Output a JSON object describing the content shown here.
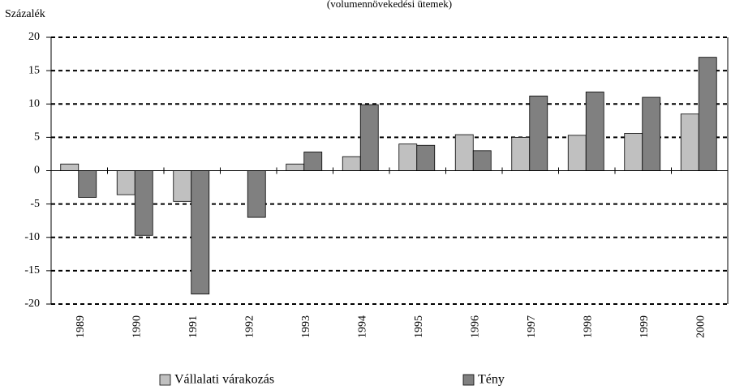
{
  "chart_data": {
    "type": "bar",
    "subtitle": "(volumennövekedési ütemek)",
    "y_label": "Százalék",
    "categories": [
      "1989",
      "1990",
      "1991",
      "1992",
      "1993",
      "1994",
      "1995",
      "1996",
      "1997",
      "1998",
      "1999",
      "2000"
    ],
    "series": [
      {
        "name": "Vállalati várakozás",
        "color": "#c0c0c0",
        "values": [
          1.0,
          -3.6,
          -4.6,
          null,
          1.0,
          2.1,
          4.0,
          5.4,
          5.0,
          5.3,
          5.6,
          8.5
        ]
      },
      {
        "name": "Tény",
        "color": "#808080",
        "values": [
          -4.0,
          -9.7,
          -18.5,
          -7.0,
          2.8,
          9.9,
          3.8,
          3.0,
          11.2,
          11.8,
          11.0,
          17.0
        ]
      }
    ],
    "ylim": [
      -20,
      20
    ],
    "yticks": [
      -20,
      -15,
      -10,
      -5,
      0,
      5,
      10,
      15,
      20
    ],
    "grid": true
  }
}
